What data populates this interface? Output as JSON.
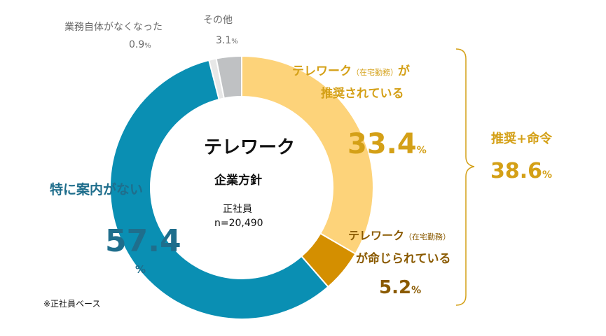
{
  "chart_data": {
    "type": "pie",
    "donut": true,
    "center": {
      "title": "テレワーク",
      "subtitle": "企業方針",
      "base": "正社員",
      "n": "n=20,490"
    },
    "slices": [
      {
        "key": "recommended",
        "label_line1": "テレワーク",
        "label_small": "（在宅勤務）",
        "label_line1_tail": "が",
        "label_line2": "推奨されている",
        "value": 33.4,
        "display": "33.4",
        "unit": "%",
        "color": "#fdd37a"
      },
      {
        "key": "mandated",
        "label_line1": "テレワーク",
        "label_small": "（在宅勤務）",
        "label_line2": "が命じられている",
        "value": 5.2,
        "display": "5.2",
        "unit": "%",
        "color": "#d48f00"
      },
      {
        "key": "none",
        "label_line1": "特に案内がない",
        "value": 57.4,
        "display": "57.4",
        "unit": "%",
        "color": "#0a8fb3"
      },
      {
        "key": "gone",
        "label_line1": "業務自体がなくなった",
        "value": 0.9,
        "display": "0.9",
        "unit": "%",
        "color": "#e7e7e7"
      },
      {
        "key": "other",
        "label_line1": "その他",
        "value": 3.1,
        "display": "3.1",
        "unit": "%",
        "color": "#bfc1c3"
      }
    ],
    "bracket": {
      "label": "推奨+命令",
      "display": "38.6",
      "unit": "%"
    },
    "footnote": "※正社員ベース"
  }
}
